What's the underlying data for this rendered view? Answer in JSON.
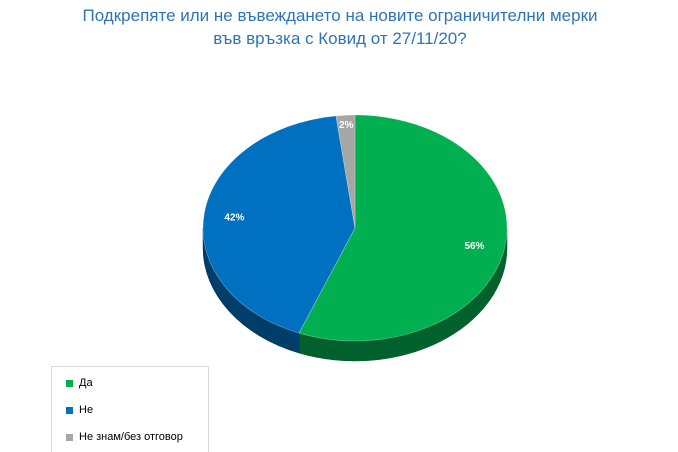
{
  "chart_data": {
    "type": "pie",
    "title": "Подкрепяте или не въвеждането на новите ограничителни мерки във връзка с Ковид от 27/11/20?",
    "title_lines": [
      "Подкрепяте или не въвеждането на новите ограничителни мерки",
      "във връзка с Ковид от 27/11/20?"
    ],
    "categories": [
      "Да",
      "Не",
      "Не знам/без отговор"
    ],
    "values": [
      56,
      42,
      2
    ],
    "data_labels": [
      "56%",
      "42%",
      "2%"
    ],
    "colors": [
      "#00b050",
      "#0070c0",
      "#a6a6a6"
    ],
    "legend_position": "bottom-left",
    "style": "3d-pie"
  }
}
